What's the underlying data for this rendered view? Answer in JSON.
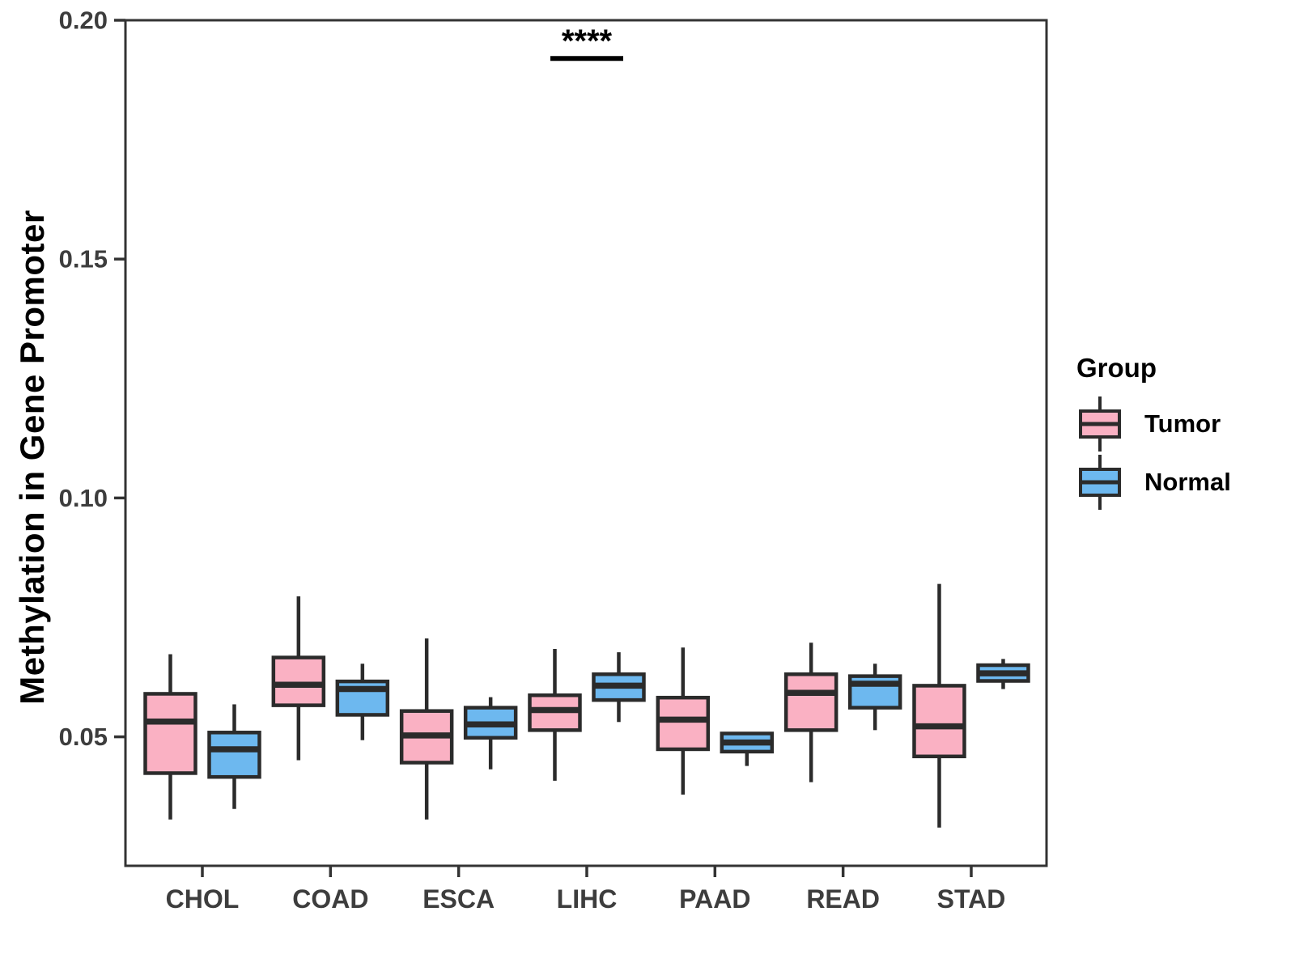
{
  "chart_data": {
    "type": "boxplot",
    "title": "",
    "xlabel": "",
    "ylabel": "Methylation in Gene Promoter",
    "categories": [
      "CHOL",
      "COAD",
      "ESCA",
      "LIHC",
      "PAAD",
      "READ",
      "STAD"
    ],
    "y_ticks": [
      0.05,
      0.1,
      0.15,
      0.2
    ],
    "y_tick_labels": [
      "0.05",
      "0.10",
      "0.15",
      "0.20"
    ],
    "ylim": [
      0.023,
      0.2
    ],
    "grid": false,
    "legend_position": "right",
    "series": [
      {
        "name": "Tumor",
        "color": "#FAB1C3",
        "boxes": [
          {
            "category": "CHOL",
            "low": 0.0327,
            "q1": 0.0424,
            "median": 0.0532,
            "q3": 0.059,
            "high": 0.0673
          },
          {
            "category": "COAD",
            "low": 0.0451,
            "q1": 0.0566,
            "median": 0.0609,
            "q3": 0.0666,
            "high": 0.0794
          },
          {
            "category": "ESCA",
            "low": 0.0327,
            "q1": 0.0446,
            "median": 0.0503,
            "q3": 0.0554,
            "high": 0.0706
          },
          {
            "category": "LIHC",
            "low": 0.0408,
            "q1": 0.0514,
            "median": 0.0556,
            "q3": 0.0587,
            "high": 0.0684
          },
          {
            "category": "PAAD",
            "low": 0.0379,
            "q1": 0.0474,
            "median": 0.0536,
            "q3": 0.0582,
            "high": 0.0687
          },
          {
            "category": "READ",
            "low": 0.0405,
            "q1": 0.0514,
            "median": 0.0592,
            "q3": 0.0631,
            "high": 0.0697
          },
          {
            "category": "STAD",
            "low": 0.031,
            "q1": 0.0459,
            "median": 0.0522,
            "q3": 0.0607,
            "high": 0.082
          }
        ]
      },
      {
        "name": "Normal",
        "color": "#6DB8EF",
        "boxes": [
          {
            "category": "CHOL",
            "low": 0.0349,
            "q1": 0.0416,
            "median": 0.0474,
            "q3": 0.0509,
            "high": 0.0568
          },
          {
            "category": "COAD",
            "low": 0.0493,
            "q1": 0.0546,
            "median": 0.06,
            "q3": 0.0616,
            "high": 0.0653
          },
          {
            "category": "ESCA",
            "low": 0.0432,
            "q1": 0.0498,
            "median": 0.0526,
            "q3": 0.0561,
            "high": 0.0583
          },
          {
            "category": "LIHC",
            "low": 0.0531,
            "q1": 0.0577,
            "median": 0.0607,
            "q3": 0.0631,
            "high": 0.0677
          },
          {
            "category": "PAAD",
            "low": 0.0439,
            "q1": 0.0469,
            "median": 0.0488,
            "q3": 0.0507,
            "high": 0.0507
          },
          {
            "category": "READ",
            "low": 0.0514,
            "q1": 0.0561,
            "median": 0.0611,
            "q3": 0.0627,
            "high": 0.0653
          },
          {
            "category": "STAD",
            "low": 0.06,
            "q1": 0.0617,
            "median": 0.0633,
            "q3": 0.065,
            "high": 0.0663
          }
        ]
      }
    ],
    "annotations": [
      {
        "text": "****",
        "category": "LIHC",
        "y": 0.192,
        "underline": true
      }
    ],
    "legend": {
      "title": "Group",
      "entries": [
        {
          "label": "Tumor",
          "color": "#FAB1C3"
        },
        {
          "label": "Normal",
          "color": "#6DB8EF"
        }
      ]
    },
    "colors": {
      "box_outline": "#2b2b2b",
      "axis_line": "#333333",
      "tick_label": "#3d3d3d",
      "annotation": "#000000"
    }
  }
}
